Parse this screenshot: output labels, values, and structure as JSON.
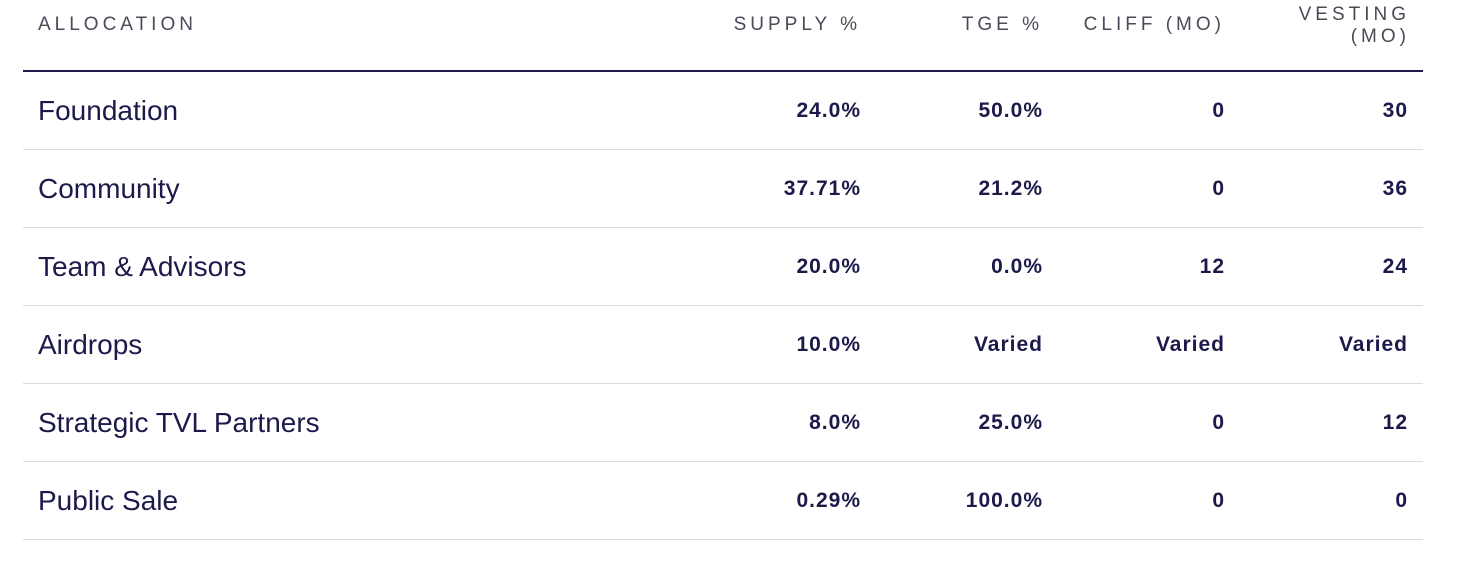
{
  "table": {
    "headers": {
      "allocation": "ALLOCATION",
      "supply": "SUPPLY %",
      "tge": "TGE %",
      "cliff": "CLIFF (MO)",
      "vesting_line1": "VESTING",
      "vesting_line2": "(MO)"
    },
    "rows": [
      {
        "allocation": "Foundation",
        "supply": "24.0%",
        "tge": "50.0%",
        "cliff": "0",
        "vesting": "30"
      },
      {
        "allocation": "Community",
        "supply": "37.71%",
        "tge": "21.2%",
        "cliff": "0",
        "vesting": "36"
      },
      {
        "allocation": "Team & Advisors",
        "supply": "20.0%",
        "tge": "0.0%",
        "cliff": "12",
        "vesting": "24"
      },
      {
        "allocation": "Airdrops",
        "supply": "10.0%",
        "tge": "Varied",
        "cliff": "Varied",
        "vesting": "Varied"
      },
      {
        "allocation": "Strategic TVL Partners",
        "supply": "8.0%",
        "tge": "25.0%",
        "cliff": "0",
        "vesting": "12"
      },
      {
        "allocation": "Public Sale",
        "supply": "0.29%",
        "tge": "100.0%",
        "cliff": "0",
        "vesting": "0"
      }
    ]
  }
}
